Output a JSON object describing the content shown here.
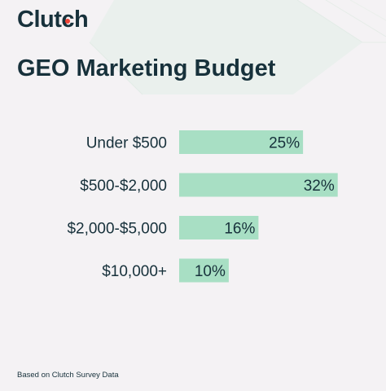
{
  "brand": {
    "logo_text_before": "Clutch",
    "accent_color": "#ef4335",
    "text_color": "#17313b"
  },
  "title": "GEO Marketing Budget",
  "footnote": "Based on Clutch Survey Data",
  "chart_data": {
    "type": "bar",
    "orientation": "horizontal",
    "categories": [
      "Under $500",
      "$500-$2,000",
      "$2,000-$5,000",
      "$10,000+"
    ],
    "values": [
      25,
      32,
      16,
      10
    ],
    "value_labels": [
      "25%",
      "32%",
      "16%",
      "10%"
    ],
    "unit": "%",
    "xlim": [
      0,
      35
    ],
    "bar_color": "#a8dfc4",
    "legend": "none",
    "grid": false
  }
}
